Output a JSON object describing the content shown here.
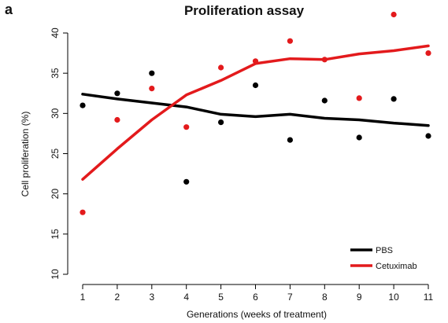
{
  "panel_label": "a",
  "chart_data": {
    "type": "scatter",
    "title": "Proliferation assay",
    "xlabel": "Generations (weeks of treatment)",
    "ylabel": "Cell proliferation (%)",
    "xlim": [
      1,
      11
    ],
    "ylim": [
      10,
      40
    ],
    "x_ticks": [
      "1",
      "2",
      "3",
      "4",
      "5",
      "6",
      "7",
      "8",
      "9",
      "10",
      "11"
    ],
    "y_ticks": [
      "10",
      "15",
      "20",
      "25",
      "30",
      "35",
      "40"
    ],
    "grid": false,
    "legend_position": "bottom-right",
    "series": [
      {
        "name": "PBS",
        "color": "#000000",
        "points_x": [
          1,
          2,
          3,
          4,
          5,
          6,
          7,
          8,
          9,
          10,
          11
        ],
        "points_y": [
          31.0,
          32.5,
          35.0,
          21.5,
          28.9,
          33.5,
          26.7,
          31.6,
          27.0,
          31.8,
          27.2
        ],
        "trend_x": [
          1,
          2,
          3,
          4,
          5,
          6,
          7,
          8,
          9,
          10,
          11
        ],
        "trend_y": [
          32.4,
          31.8,
          31.3,
          30.8,
          29.9,
          29.6,
          29.9,
          29.4,
          29.2,
          28.8,
          28.5
        ]
      },
      {
        "name": "Cetuximab",
        "color": "#e31a1c",
        "points_x": [
          1,
          2,
          3,
          4,
          5,
          6,
          7,
          8,
          9,
          10,
          11
        ],
        "points_y": [
          17.7,
          29.2,
          33.1,
          28.3,
          35.7,
          36.5,
          39.0,
          36.7,
          31.9,
          42.3,
          37.5
        ],
        "trend_x": [
          1,
          2,
          3,
          4,
          5,
          6,
          7,
          8,
          9,
          10,
          11
        ],
        "trend_y": [
          21.8,
          25.6,
          29.2,
          32.3,
          34.1,
          36.2,
          36.8,
          36.7,
          37.4,
          37.8,
          38.4
        ]
      }
    ]
  }
}
